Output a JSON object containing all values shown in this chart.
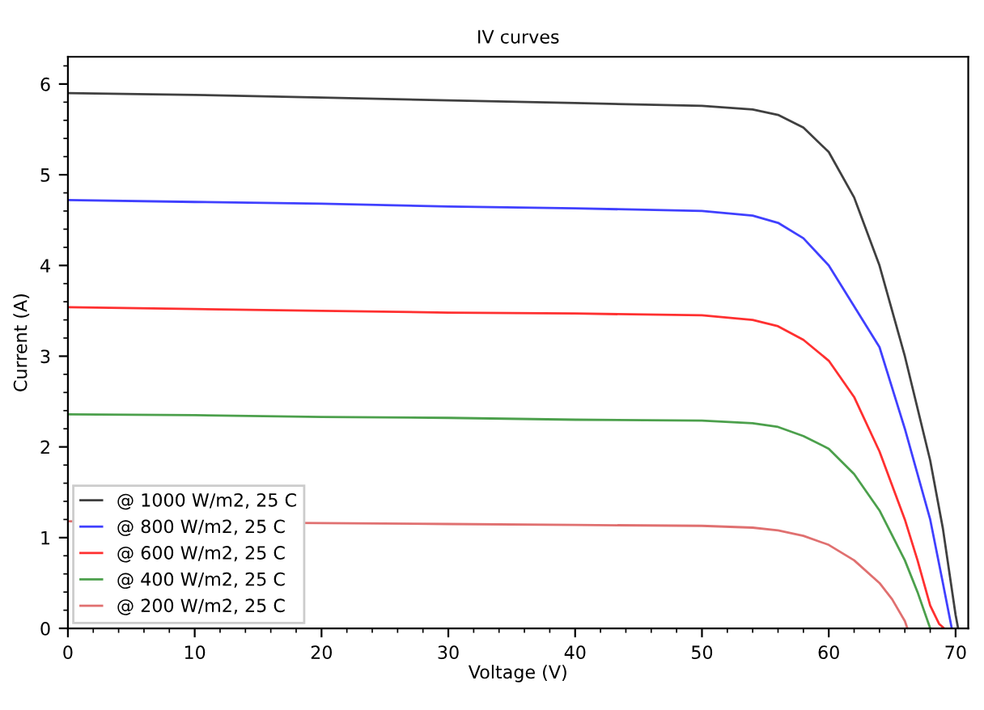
{
  "chart_data": {
    "type": "line",
    "title": "IV curves",
    "xlabel": "Voltage (V)",
    "ylabel": "Current (A)",
    "xlim": [
      0,
      71
    ],
    "xticks": [
      0,
      10,
      20,
      30,
      40,
      50,
      60,
      70
    ],
    "ylim": [
      0,
      6.3
    ],
    "yticks": [
      0,
      1,
      2,
      3,
      4,
      5,
      6
    ],
    "grid": false,
    "legend": "bottom left",
    "marker": "none",
    "line_style": "solid",
    "series": [
      {
        "name": "@ 1000 W/m2, 25 C",
        "color": "#404040",
        "x": [
          0,
          10,
          20,
          30,
          40,
          50,
          54,
          56,
          58,
          60,
          62,
          64,
          66,
          68,
          69,
          70,
          70.2
        ],
        "values": [
          5.9,
          5.88,
          5.85,
          5.82,
          5.79,
          5.76,
          5.72,
          5.66,
          5.52,
          5.25,
          4.75,
          4.0,
          3.0,
          1.85,
          1.1,
          0.15,
          0
        ]
      },
      {
        "name": "@ 800 W/m2, 25 C",
        "color": "#4040ff",
        "x": [
          0,
          10,
          20,
          30,
          40,
          50,
          54,
          56,
          58,
          60,
          62,
          64,
          66,
          68,
          69,
          69.7
        ],
        "values": [
          4.72,
          4.7,
          4.68,
          4.65,
          4.63,
          4.6,
          4.55,
          4.47,
          4.3,
          4.0,
          3.55,
          3.1,
          2.2,
          1.2,
          0.5,
          0
        ]
      },
      {
        "name": "@ 600 W/m2, 25 C",
        "color": "#ff3030",
        "x": [
          0,
          10,
          20,
          30,
          40,
          50,
          54,
          56,
          58,
          60,
          62,
          64,
          66,
          67,
          68,
          68.7,
          69.1
        ],
        "values": [
          3.54,
          3.52,
          3.5,
          3.48,
          3.47,
          3.45,
          3.4,
          3.33,
          3.18,
          2.95,
          2.55,
          1.95,
          1.2,
          0.75,
          0.25,
          0.05,
          0
        ]
      },
      {
        "name": "@ 400 W/m2, 25 C",
        "color": "#4ca04c",
        "x": [
          0,
          10,
          20,
          30,
          40,
          50,
          54,
          56,
          58,
          60,
          62,
          64,
          66,
          67,
          68
        ],
        "values": [
          2.36,
          2.35,
          2.33,
          2.32,
          2.3,
          2.29,
          2.26,
          2.22,
          2.12,
          1.98,
          1.7,
          1.3,
          0.75,
          0.4,
          0
        ]
      },
      {
        "name": "@ 200 W/m2, 25 C",
        "color": "#e07070",
        "x": [
          0,
          20,
          30,
          40,
          50,
          54,
          56,
          58,
          60,
          62,
          64,
          65,
          66,
          66.2
        ],
        "values": [
          1.18,
          1.16,
          1.15,
          1.14,
          1.13,
          1.11,
          1.08,
          1.02,
          0.92,
          0.75,
          0.5,
          0.32,
          0.08,
          0
        ]
      }
    ]
  }
}
